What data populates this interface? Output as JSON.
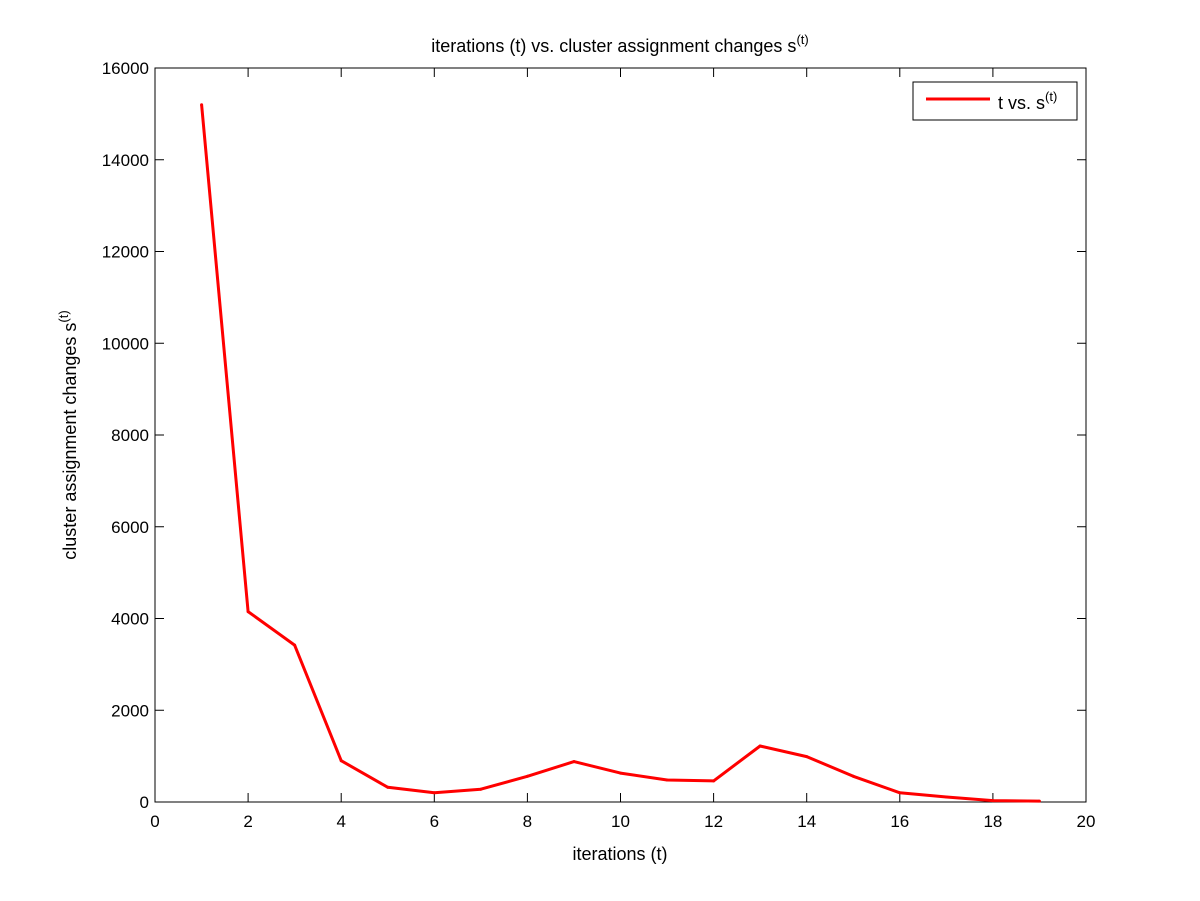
{
  "chart_data": {
    "type": "line",
    "title": "iterations (t) vs. cluster assignment changes s",
    "title_superscript": "(t)",
    "xlabel": "iterations (t)",
    "ylabel": "cluster assignment changes s",
    "ylabel_superscript": "(t)",
    "xlim": [
      0,
      20
    ],
    "ylim": [
      0,
      16000
    ],
    "xticks": [
      0,
      2,
      4,
      6,
      8,
      10,
      12,
      14,
      16,
      18,
      20
    ],
    "yticks": [
      0,
      2000,
      4000,
      6000,
      8000,
      10000,
      12000,
      14000,
      16000
    ],
    "grid": false,
    "legend_position": "top-right",
    "series": [
      {
        "name": "t vs. s",
        "name_superscript": "(t)",
        "color": "#ff0000",
        "x": [
          1,
          2,
          3,
          4,
          5,
          6,
          7,
          8,
          9,
          10,
          11,
          12,
          13,
          14,
          15,
          16,
          17,
          18,
          19
        ],
        "y": [
          15200,
          4150,
          3420,
          900,
          320,
          200,
          280,
          560,
          880,
          630,
          480,
          460,
          1220,
          990,
          560,
          200,
          110,
          30,
          20
        ]
      }
    ]
  }
}
